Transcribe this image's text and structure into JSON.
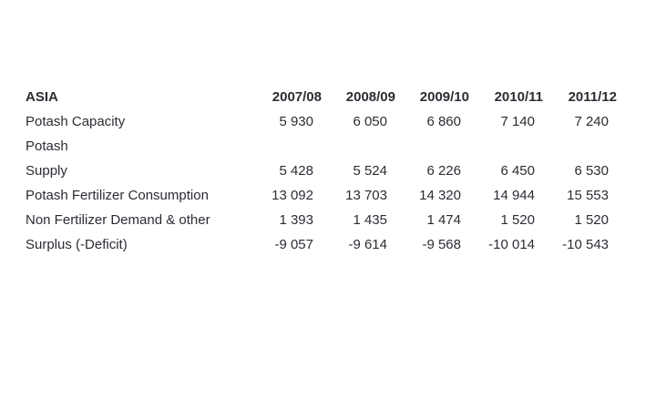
{
  "table": {
    "region_label": "ASIA",
    "columns": [
      "2007/08",
      "2008/09",
      "2009/10",
      "2010/11",
      "2011/12"
    ],
    "rows": [
      {
        "label": "Potash Capacity",
        "values": [
          "5 930",
          "6 050",
          "6 860",
          "7 140",
          "7 240"
        ]
      },
      {
        "label": "Potash",
        "values": [
          "",
          "",
          "",
          "",
          ""
        ]
      },
      {
        "label": "Supply",
        "values": [
          "5 428",
          "5 524",
          "6 226",
          "6 450",
          "6 530"
        ]
      },
      {
        "label": "Potash Fertilizer Consumption",
        "values": [
          "13 092",
          "13 703",
          "14 320",
          "14 944",
          "15 553"
        ]
      },
      {
        "label": "Non Fertilizer Demand & other",
        "values": [
          "1 393",
          "1 435",
          "1 474",
          "1 520",
          "1 520"
        ]
      },
      {
        "label": "Surplus (-Deficit)",
        "values": [
          "-9 057",
          "-9 614",
          "-9 568",
          "-10 014",
          "-10 543"
        ]
      }
    ],
    "colors": {
      "text": "#2b2d34",
      "background": "#ffffff"
    }
  },
  "chart_data": {
    "type": "table",
    "title": "ASIA",
    "categories": [
      "2007/08",
      "2008/09",
      "2009/10",
      "2010/11",
      "2011/12"
    ],
    "series": [
      {
        "name": "Potash Capacity",
        "values": [
          5930,
          6050,
          6860,
          7140,
          7240
        ]
      },
      {
        "name": "Potash Supply",
        "values": [
          5428,
          5524,
          6226,
          6450,
          6530
        ]
      },
      {
        "name": "Potash Fertilizer Consumption",
        "values": [
          13092,
          13703,
          14320,
          14944,
          15553
        ]
      },
      {
        "name": "Non Fertilizer Demand & other",
        "values": [
          1393,
          1435,
          1474,
          1520,
          1520
        ]
      },
      {
        "name": "Surplus (-Deficit)",
        "values": [
          -9057,
          -9614,
          -9568,
          -10014,
          -10543
        ]
      }
    ]
  }
}
